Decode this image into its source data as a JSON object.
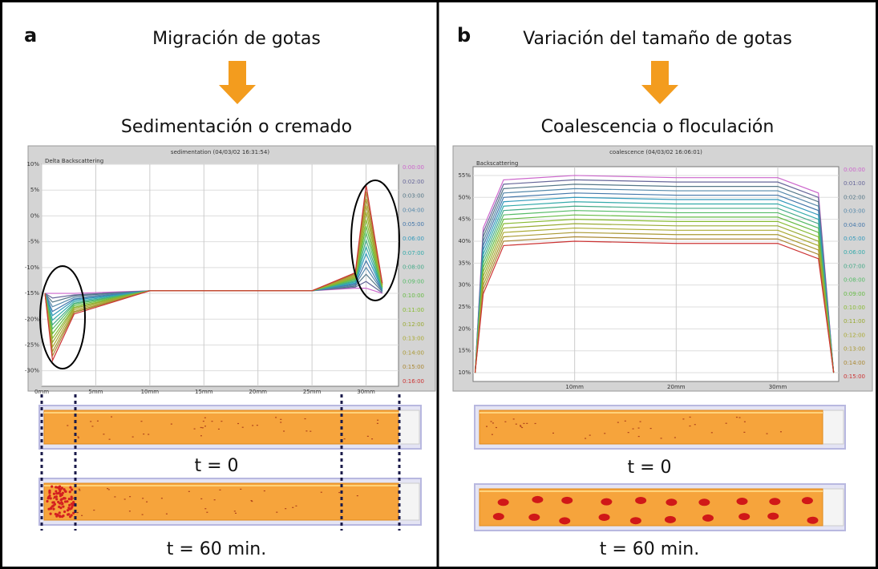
{
  "panels": [
    {
      "letter": "a",
      "process": "Migración de gotas",
      "result": "Sedimentación o cremado",
      "t0": "t = 0",
      "t60": "t = 60 min."
    },
    {
      "letter": "b",
      "process": "Variación del tamaño de gotas",
      "result": "Coalescencia o floculación",
      "t0": "t = 0",
      "t60": "t = 60 min."
    }
  ],
  "chart_data": [
    {
      "type": "line",
      "title": "sedimentation (04/03/02 16:31:54)",
      "y_label": "Delta Backscattering",
      "x": [
        0.3,
        1,
        3,
        10,
        25,
        29,
        30,
        31.5
      ],
      "xlim": [
        0,
        33
      ],
      "xticks": [
        {
          "value": 0,
          "label": "0mm"
        },
        {
          "value": 5,
          "label": "5mm"
        },
        {
          "value": 10,
          "label": "10mm"
        },
        {
          "value": 15,
          "label": "15mm"
        },
        {
          "value": 20,
          "label": "20mm"
        },
        {
          "value": 25,
          "label": "25mm"
        },
        {
          "value": 30,
          "label": "30mm"
        }
      ],
      "ylim": [
        -33,
        10
      ],
      "yticks": [
        {
          "value": 10,
          "label": "10%"
        },
        {
          "value": 5,
          "label": "5%"
        },
        {
          "value": 0,
          "label": "0%"
        },
        {
          "value": -5,
          "label": "-5%"
        },
        {
          "value": -10,
          "label": "-10%"
        },
        {
          "value": -15,
          "label": "-15%"
        },
        {
          "value": -20,
          "label": "-20%"
        },
        {
          "value": -25,
          "label": "-25%"
        },
        {
          "value": -30,
          "label": "-30%"
        }
      ],
      "grid": true,
      "series": [
        {
          "name": "0:00:00",
          "color": "#cc66cc",
          "values": [
            -15,
            -15,
            -15,
            -14.5,
            -14.5,
            -14,
            -14,
            -15
          ]
        },
        {
          "name": "0:02:00",
          "color": "#666699",
          "values": [
            -15,
            -15.9,
            -15.3,
            -14.5,
            -14.5,
            -13.8,
            -12.7,
            -14.9
          ]
        },
        {
          "name": "0:03:00",
          "color": "#557788",
          "values": [
            -15,
            -16.7,
            -15.5,
            -14.5,
            -14.5,
            -13.6,
            -11.3,
            -14.7
          ]
        },
        {
          "name": "0:04:00",
          "color": "#5588aa",
          "values": [
            -15,
            -17.6,
            -15.8,
            -14.5,
            -14.5,
            -13.4,
            -10,
            -14.6
          ]
        },
        {
          "name": "0:05:00",
          "color": "#4477aa",
          "values": [
            -15,
            -18.5,
            -16.1,
            -14.5,
            -14.5,
            -13.2,
            -8.7,
            -14.5
          ]
        },
        {
          "name": "0:06:00",
          "color": "#3399bb",
          "values": [
            -15,
            -19.3,
            -16.3,
            -14.5,
            -14.5,
            -13,
            -7.3,
            -14.3
          ]
        },
        {
          "name": "0:07:00",
          "color": "#33aaaa",
          "values": [
            -15,
            -20.2,
            -16.6,
            -14.5,
            -14.5,
            -12.8,
            -6,
            -14.2
          ]
        },
        {
          "name": "0:08:00",
          "color": "#44aa88",
          "values": [
            -15,
            -21.1,
            -16.9,
            -14.5,
            -14.5,
            -12.6,
            -4.7,
            -14.1
          ]
        },
        {
          "name": "0:09:00",
          "color": "#55bb66",
          "values": [
            -15,
            -21.9,
            -17.1,
            -14.5,
            -14.5,
            -12.4,
            -3.3,
            -13.9
          ]
        },
        {
          "name": "0:10:00",
          "color": "#66bb44",
          "values": [
            -15,
            -22.8,
            -17.4,
            -14.5,
            -14.5,
            -12.2,
            -2,
            -13.8
          ]
        },
        {
          "name": "0:11:00",
          "color": "#88bb33",
          "values": [
            -15,
            -23.7,
            -17.7,
            -14.5,
            -14.5,
            -12,
            -0.7,
            -13.7
          ]
        },
        {
          "name": "0:12:00",
          "color": "#99aa33",
          "values": [
            -15,
            -24.5,
            -17.9,
            -14.5,
            -14.5,
            -11.8,
            0.7,
            -13.5
          ]
        },
        {
          "name": "0:13:00",
          "color": "#aaaa33",
          "values": [
            -15,
            -25.4,
            -18.2,
            -14.5,
            -14.5,
            -11.6,
            2,
            -13.4
          ]
        },
        {
          "name": "0:14:00",
          "color": "#aa9933",
          "values": [
            -15,
            -26.3,
            -18.5,
            -14.5,
            -14.5,
            -11.4,
            3.3,
            -13.3
          ]
        },
        {
          "name": "0:15:00",
          "color": "#aa8833",
          "values": [
            -15,
            -27.1,
            -18.7,
            -14.5,
            -14.5,
            -11.2,
            4.7,
            -13.1
          ]
        },
        {
          "name": "0:16:00",
          "color": "#cc3333",
          "values": [
            -15,
            -28,
            -19,
            -14.5,
            -14.5,
            -11,
            6,
            -13
          ]
        }
      ]
    },
    {
      "type": "line",
      "title": "coalescence (04/03/02 16:06:01)",
      "y_label": "Backscattering",
      "x": [
        0.2,
        1,
        3,
        10,
        20,
        30,
        34,
        35.5
      ],
      "xlim": [
        0,
        36
      ],
      "xticks": [
        {
          "value": 10,
          "label": "10mm"
        },
        {
          "value": 20,
          "label": "20mm"
        },
        {
          "value": 30,
          "label": "30mm"
        }
      ],
      "ylim": [
        8,
        57
      ],
      "yticks": [
        {
          "value": 55,
          "label": "55%"
        },
        {
          "value": 50,
          "label": "50%"
        },
        {
          "value": 45,
          "label": "45%"
        },
        {
          "value": 40,
          "label": "40%"
        },
        {
          "value": 35,
          "label": "35%"
        },
        {
          "value": 30,
          "label": "30%"
        },
        {
          "value": 25,
          "label": "25%"
        },
        {
          "value": 20,
          "label": "20%"
        },
        {
          "value": 15,
          "label": "15%"
        },
        {
          "value": 10,
          "label": "10%"
        }
      ],
      "grid": true,
      "series": [
        {
          "name": "0:00:00",
          "color": "#cc66cc",
          "values": [
            10,
            43,
            54,
            55,
            54.5,
            54.5,
            51,
            10
          ]
        },
        {
          "name": "0:01:00",
          "color": "#666699",
          "values": [
            10,
            42,
            53,
            54,
            53.5,
            53.5,
            50,
            10
          ]
        },
        {
          "name": "0:02:00",
          "color": "#557788",
          "values": [
            10,
            41,
            52,
            53,
            52.5,
            52.5,
            49,
            10
          ]
        },
        {
          "name": "0:03:00",
          "color": "#5588aa",
          "values": [
            10,
            40,
            51,
            52,
            51.5,
            51.5,
            48,
            10
          ]
        },
        {
          "name": "0:04:00",
          "color": "#4477aa",
          "values": [
            10,
            39,
            50,
            51,
            50.5,
            50.5,
            47,
            10
          ]
        },
        {
          "name": "0:05:00",
          "color": "#3399bb",
          "values": [
            10,
            38,
            49,
            50,
            49.5,
            49.5,
            46,
            10
          ]
        },
        {
          "name": "0:06:00",
          "color": "#33aaaa",
          "values": [
            10,
            37,
            48,
            49,
            48.5,
            48.5,
            45,
            10
          ]
        },
        {
          "name": "0:07:00",
          "color": "#44aa88",
          "values": [
            10,
            36,
            47,
            48,
            47.5,
            47.5,
            44,
            10
          ]
        },
        {
          "name": "0:08:00",
          "color": "#55bb66",
          "values": [
            10,
            35,
            46,
            47,
            46.5,
            46.5,
            43,
            10
          ]
        },
        {
          "name": "0:09:00",
          "color": "#66bb44",
          "values": [
            10,
            34,
            45,
            46,
            45.5,
            45.5,
            42,
            10
          ]
        },
        {
          "name": "0:10:00",
          "color": "#88bb33",
          "values": [
            10,
            33,
            44,
            45,
            44.5,
            44.5,
            41,
            10
          ]
        },
        {
          "name": "0:11:00",
          "color": "#99aa33",
          "values": [
            10,
            32,
            43,
            44,
            43.5,
            43.5,
            40,
            10
          ]
        },
        {
          "name": "0:12:00",
          "color": "#aaaa33",
          "values": [
            10,
            31,
            42,
            43,
            42.5,
            42.5,
            39,
            10
          ]
        },
        {
          "name": "0:13:00",
          "color": "#aa9933",
          "values": [
            10,
            30,
            41,
            42,
            41.5,
            41.5,
            38,
            10
          ]
        },
        {
          "name": "0:14:00",
          "color": "#aa8833",
          "values": [
            10,
            29,
            40,
            41,
            40.5,
            40.5,
            37,
            10
          ]
        },
        {
          "name": "0:15:00",
          "color": "#cc3333",
          "values": [
            10,
            28,
            39,
            40,
            39.5,
            39.5,
            36,
            10
          ]
        }
      ]
    }
  ]
}
